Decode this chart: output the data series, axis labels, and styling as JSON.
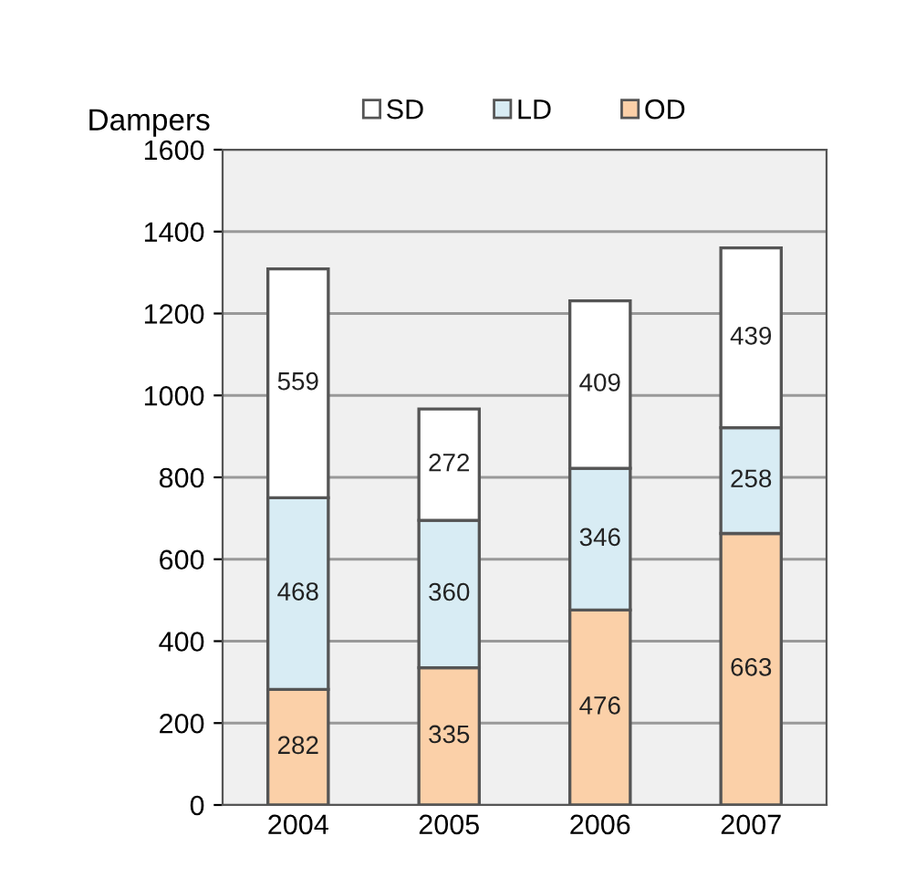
{
  "chart_data": {
    "type": "bar",
    "stacked": true,
    "ylabel": "Dampers",
    "categories": [
      "2004",
      "2005",
      "2006",
      "2007"
    ],
    "series": [
      {
        "name": "OD",
        "color": "#fbd0a8",
        "values": [
          282,
          335,
          476,
          663
        ]
      },
      {
        "name": "LD",
        "color": "#d8ecf4",
        "values": [
          468,
          360,
          346,
          258
        ]
      },
      {
        "name": "SD",
        "color": "#ffffff",
        "values": [
          559,
          272,
          409,
          439
        ]
      }
    ],
    "ylim": [
      0,
      1600
    ],
    "yticks": [
      0,
      200,
      400,
      600,
      800,
      1000,
      1200,
      1400,
      1600
    ],
    "grid": "y",
    "legend": "top",
    "data_labels": true
  }
}
